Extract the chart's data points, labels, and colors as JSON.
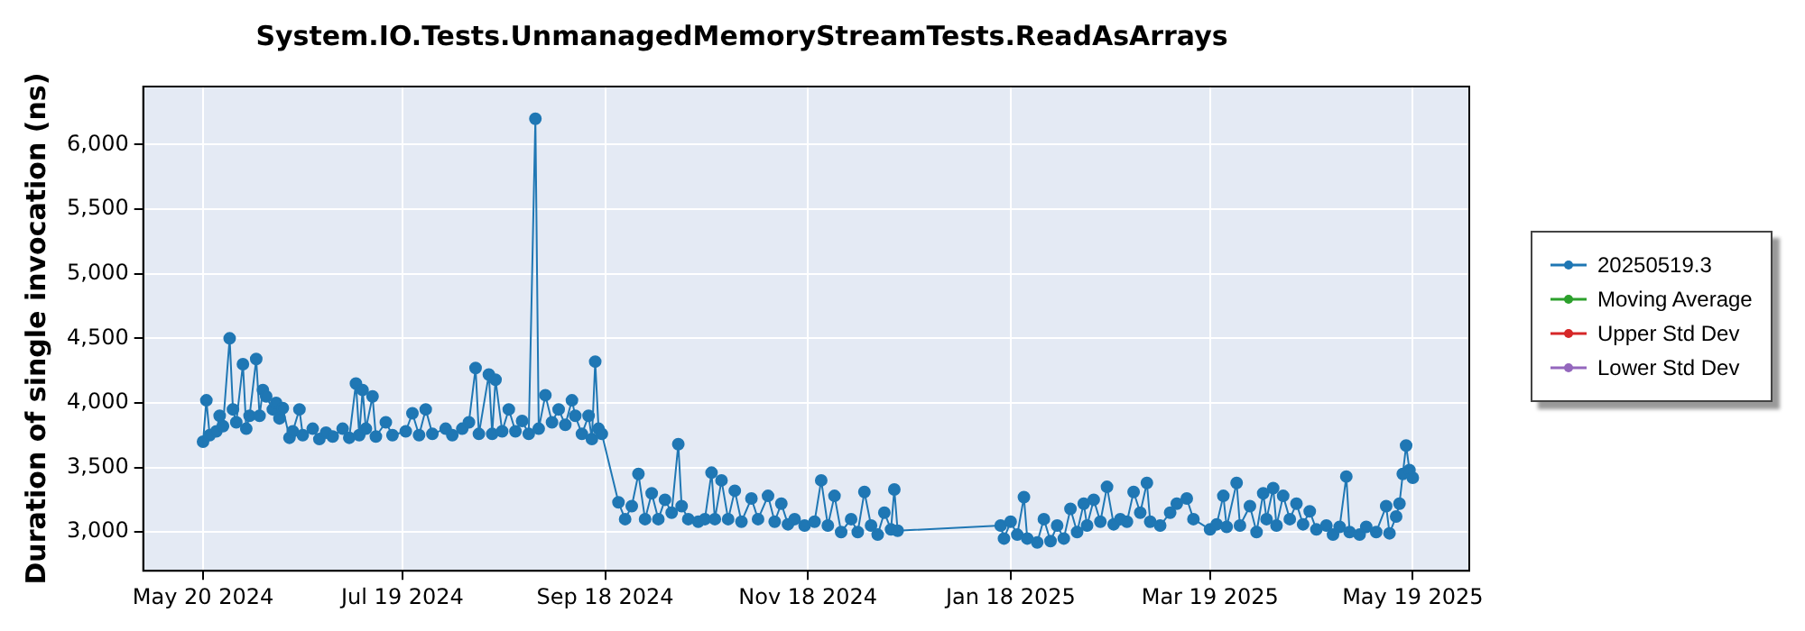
{
  "chart_data": {
    "type": "line",
    "title": "System.IO.Tests.UnmanagedMemoryStreamTests.ReadAsArrays",
    "ylabel": "Duration of single invocation (ns)",
    "x": [
      "2024-05-20",
      "2024-05-21",
      "2024-05-22",
      "2024-05-24",
      "2024-05-25",
      "2024-05-26",
      "2024-05-28",
      "2024-05-29",
      "2024-05-30",
      "2024-06-01",
      "2024-06-02",
      "2024-06-03",
      "2024-06-05",
      "2024-06-06",
      "2024-06-07",
      "2024-06-08",
      "2024-06-10",
      "2024-06-11",
      "2024-06-12",
      "2024-06-13",
      "2024-06-15",
      "2024-06-16",
      "2024-06-18",
      "2024-06-19",
      "2024-06-22",
      "2024-06-24",
      "2024-06-26",
      "2024-06-28",
      "2024-07-01",
      "2024-07-03",
      "2024-07-05",
      "2024-07-06",
      "2024-07-07",
      "2024-07-08",
      "2024-07-10",
      "2024-07-11",
      "2024-07-14",
      "2024-07-16",
      "2024-07-20",
      "2024-07-22",
      "2024-07-24",
      "2024-07-26",
      "2024-07-28",
      "2024-08-01",
      "2024-08-03",
      "2024-08-06",
      "2024-08-08",
      "2024-08-10",
      "2024-08-11",
      "2024-08-14",
      "2024-08-15",
      "2024-08-16",
      "2024-08-18",
      "2024-08-20",
      "2024-08-22",
      "2024-08-24",
      "2024-08-26",
      "2024-08-28",
      "2024-08-29",
      "2024-08-31",
      "2024-09-02",
      "2024-09-04",
      "2024-09-06",
      "2024-09-08",
      "2024-09-09",
      "2024-09-11",
      "2024-09-13",
      "2024-09-14",
      "2024-09-15",
      "2024-09-16",
      "2024-09-17",
      "2024-09-22",
      "2024-09-24",
      "2024-09-26",
      "2024-09-28",
      "2024-09-30",
      "2024-10-02",
      "2024-10-04",
      "2024-10-06",
      "2024-10-08",
      "2024-10-10",
      "2024-10-11",
      "2024-10-13",
      "2024-10-16",
      "2024-10-18",
      "2024-10-20",
      "2024-10-21",
      "2024-10-23",
      "2024-10-25",
      "2024-10-27",
      "2024-10-29",
      "2024-11-01",
      "2024-11-03",
      "2024-11-06",
      "2024-11-08",
      "2024-11-10",
      "2024-11-12",
      "2024-11-14",
      "2024-11-17",
      "2024-11-20",
      "2024-11-22",
      "2024-11-24",
      "2024-11-26",
      "2024-11-28",
      "2024-12-01",
      "2024-12-03",
      "2024-12-05",
      "2024-12-07",
      "2024-12-09",
      "2024-12-11",
      "2024-12-13",
      "2024-12-14",
      "2024-12-15",
      "2025-01-15",
      "2025-01-16",
      "2025-01-18",
      "2025-01-20",
      "2025-01-22",
      "2025-01-23",
      "2025-01-26",
      "2025-01-28",
      "2025-01-30",
      "2025-02-01",
      "2025-02-03",
      "2025-02-05",
      "2025-02-07",
      "2025-02-09",
      "2025-02-10",
      "2025-02-12",
      "2025-02-14",
      "2025-02-16",
      "2025-02-18",
      "2025-02-20",
      "2025-02-22",
      "2025-02-24",
      "2025-02-26",
      "2025-02-28",
      "2025-03-01",
      "2025-03-04",
      "2025-03-07",
      "2025-03-09",
      "2025-03-12",
      "2025-03-14",
      "2025-03-19",
      "2025-03-21",
      "2025-03-23",
      "2025-03-24",
      "2025-03-27",
      "2025-03-28",
      "2025-03-31",
      "2025-04-02",
      "2025-04-04",
      "2025-04-05",
      "2025-04-07",
      "2025-04-08",
      "2025-04-10",
      "2025-04-12",
      "2025-04-14",
      "2025-04-16",
      "2025-04-18",
      "2025-04-20",
      "2025-04-23",
      "2025-04-25",
      "2025-04-27",
      "2025-04-29",
      "2025-04-30",
      "2025-05-03",
      "2025-05-05",
      "2025-05-08",
      "2025-05-11",
      "2025-05-12",
      "2025-05-14",
      "2025-05-15",
      "2025-05-16",
      "2025-05-17",
      "2025-05-18",
      "2025-05-19"
    ],
    "series": [
      {
        "name": "20250519.3",
        "color": "#1f77b4",
        "values": [
          3700,
          4020,
          3750,
          3780,
          3900,
          3820,
          4500,
          3950,
          3850,
          4300,
          3800,
          3900,
          4340,
          3900,
          4100,
          4050,
          3950,
          4000,
          3880,
          3960,
          3730,
          3780,
          3950,
          3750,
          3800,
          3720,
          3770,
          3740,
          3800,
          3730,
          4150,
          3750,
          4100,
          3800,
          4050,
          3740,
          3850,
          3750,
          3780,
          3920,
          3750,
          3950,
          3760,
          3800,
          3750,
          3800,
          3850,
          4270,
          3760,
          4220,
          3760,
          4180,
          3780,
          3950,
          3780,
          3860,
          3760,
          6200,
          3800,
          4060,
          3850,
          3950,
          3830,
          4020,
          3900,
          3760,
          3900,
          3720,
          4320,
          3800,
          3760,
          3230,
          3100,
          3200,
          3450,
          3100,
          3300,
          3100,
          3250,
          3150,
          3680,
          3200,
          3100,
          3080,
          3100,
          3460,
          3100,
          3400,
          3100,
          3320,
          3080,
          3260,
          3100,
          3280,
          3080,
          3220,
          3060,
          3100,
          3050,
          3080,
          3400,
          3050,
          3280,
          3000,
          3100,
          3000,
          3310,
          3050,
          2980,
          3150,
          3020,
          3330,
          3010,
          3050,
          2950,
          3080,
          2980,
          3270,
          2950,
          2920,
          3100,
          2930,
          3050,
          2950,
          3180,
          3000,
          3220,
          3050,
          3250,
          3080,
          3350,
          3060,
          3100,
          3080,
          3310,
          3150,
          3380,
          3080,
          3050,
          3150,
          3220,
          3260,
          3100,
          3020,
          3060,
          3280,
          3040,
          3380,
          3050,
          3200,
          3000,
          3300,
          3100,
          3340,
          3050,
          3280,
          3100,
          3220,
          3060,
          3160,
          3020,
          3050,
          2980,
          3040,
          3430,
          3000,
          2980,
          3040,
          3000,
          3200,
          2990,
          3120,
          3220,
          3450,
          3670,
          3480,
          3420
        ]
      },
      {
        "name": "Moving Average",
        "color": "#2ca02c",
        "values": [
          null,
          null,
          null,
          null,
          null,
          null,
          null,
          null,
          null,
          null,
          null,
          null,
          null,
          null,
          null,
          null,
          null,
          null,
          null,
          null,
          null,
          null,
          null,
          null,
          null,
          null,
          null,
          null,
          null,
          null,
          null,
          null,
          null,
          null,
          null,
          null,
          null,
          null,
          null,
          null,
          null,
          null,
          null,
          null,
          null,
          null,
          null,
          null,
          null,
          null,
          null,
          null,
          null,
          null,
          null,
          null,
          null,
          null,
          null,
          null,
          null,
          null,
          null,
          null,
          null,
          null,
          null,
          null,
          null,
          null,
          null,
          null,
          null,
          null,
          null,
          null,
          null,
          null,
          null,
          null,
          null,
          null,
          null,
          null,
          null,
          null,
          null,
          null,
          null,
          null,
          null,
          null,
          null,
          null,
          null,
          null,
          null,
          null,
          null,
          null,
          null,
          null,
          null,
          null,
          null,
          null,
          null,
          null,
          null,
          null,
          null,
          null,
          null,
          null,
          null,
          null,
          null,
          null,
          null,
          null,
          null,
          null,
          null,
          null,
          null,
          null,
          null,
          null,
          null,
          null,
          null,
          null,
          null,
          null,
          null,
          null,
          null,
          null,
          null,
          null,
          null,
          null,
          null,
          null,
          null,
          null,
          null,
          null,
          null,
          null,
          null,
          null,
          null,
          null,
          null,
          null,
          null,
          null,
          null,
          null,
          null,
          null,
          null,
          null,
          null,
          null,
          null,
          null,
          null,
          null,
          null,
          null,
          null,
          null,
          null,
          null,
          null
        ]
      },
      {
        "name": "Upper Std Dev",
        "color": "#d62728",
        "values": [
          null,
          null,
          null,
          null,
          null,
          null,
          null,
          null,
          null,
          null,
          null,
          null,
          null,
          null,
          null,
          null,
          null,
          null,
          null,
          null,
          null,
          null,
          null,
          null,
          null,
          null,
          null,
          null,
          null,
          null,
          null,
          null,
          null,
          null,
          null,
          null,
          null,
          null,
          null,
          null,
          null,
          null,
          null,
          null,
          null,
          null,
          null,
          null,
          null,
          null,
          null,
          null,
          null,
          null,
          null,
          null,
          null,
          null,
          null,
          null,
          null,
          null,
          null,
          null,
          null,
          null,
          null,
          null,
          null,
          null,
          null,
          null,
          null,
          null,
          null,
          null,
          null,
          null,
          null,
          null,
          null,
          null,
          null,
          null,
          null,
          null,
          null,
          null,
          null,
          null,
          null,
          null,
          null,
          null,
          null,
          null,
          null,
          null,
          null,
          null,
          null,
          null,
          null,
          null,
          null,
          null,
          null,
          null,
          null,
          null,
          null,
          null,
          null,
          null,
          null,
          null,
          null,
          null,
          null,
          null,
          null,
          null,
          null,
          null,
          null,
          null,
          null,
          null,
          null,
          null,
          null,
          null,
          null,
          null,
          null,
          null,
          null,
          null,
          null,
          null,
          null,
          null,
          null,
          null,
          null,
          null,
          null,
          null,
          null,
          null,
          null,
          null,
          null,
          null,
          null,
          null,
          null,
          null,
          null,
          null,
          null,
          null,
          null,
          null,
          null,
          null,
          null,
          null,
          null,
          null,
          null,
          null,
          null,
          null,
          null,
          null,
          null
        ]
      },
      {
        "name": "Lower Std Dev",
        "color": "#9467bd",
        "values": [
          null,
          null,
          null,
          null,
          null,
          null,
          null,
          null,
          null,
          null,
          null,
          null,
          null,
          null,
          null,
          null,
          null,
          null,
          null,
          null,
          null,
          null,
          null,
          null,
          null,
          null,
          null,
          null,
          null,
          null,
          null,
          null,
          null,
          null,
          null,
          null,
          null,
          null,
          null,
          null,
          null,
          null,
          null,
          null,
          null,
          null,
          null,
          null,
          null,
          null,
          null,
          null,
          null,
          null,
          null,
          null,
          null,
          null,
          null,
          null,
          null,
          null,
          null,
          null,
          null,
          null,
          null,
          null,
          null,
          null,
          null,
          null,
          null,
          null,
          null,
          null,
          null,
          null,
          null,
          null,
          null,
          null,
          null,
          null,
          null,
          null,
          null,
          null,
          null,
          null,
          null,
          null,
          null,
          null,
          null,
          null,
          null,
          null,
          null,
          null,
          null,
          null,
          null,
          null,
          null,
          null,
          null,
          null,
          null,
          null,
          null,
          null,
          null,
          null,
          null,
          null,
          null,
          null,
          null,
          null,
          null,
          null,
          null,
          null,
          null,
          null,
          null,
          null,
          null,
          null,
          null,
          null,
          null,
          null,
          null,
          null,
          null,
          null,
          null,
          null,
          null,
          null,
          null,
          null,
          null,
          null,
          null,
          null,
          null,
          null,
          null,
          null,
          null,
          null,
          null,
          null,
          null,
          null,
          null,
          null,
          null,
          null,
          null,
          null,
          null,
          null,
          null,
          null,
          null,
          null,
          null,
          null,
          null,
          null,
          null,
          null,
          null
        ]
      }
    ],
    "xlim": [
      "2024-05-02",
      "2025-06-05"
    ],
    "xticks": [
      {
        "value": "2024-05-20",
        "label": "May 20 2024"
      },
      {
        "value": "2024-07-19",
        "label": "Jul 19 2024"
      },
      {
        "value": "2024-09-18",
        "label": "Sep 18 2024"
      },
      {
        "value": "2024-11-18",
        "label": "Nov 18 2024"
      },
      {
        "value": "2025-01-18",
        "label": "Jan 18 2025"
      },
      {
        "value": "2025-03-19",
        "label": "Mar 19 2025"
      },
      {
        "value": "2025-05-19",
        "label": "May 19 2025"
      }
    ],
    "ylim": [
      2700,
      6450
    ],
    "yticks": [
      {
        "value": 3000,
        "label": "3,000"
      },
      {
        "value": 3500,
        "label": "3,500"
      },
      {
        "value": 4000,
        "label": "4,000"
      },
      {
        "value": 4500,
        "label": "4,500"
      },
      {
        "value": 5000,
        "label": "5,000"
      },
      {
        "value": 5500,
        "label": "5,500"
      },
      {
        "value": 6000,
        "label": "6,000"
      }
    ],
    "grid": true,
    "legend": "right",
    "marker": "circle",
    "line_style": "solid"
  }
}
